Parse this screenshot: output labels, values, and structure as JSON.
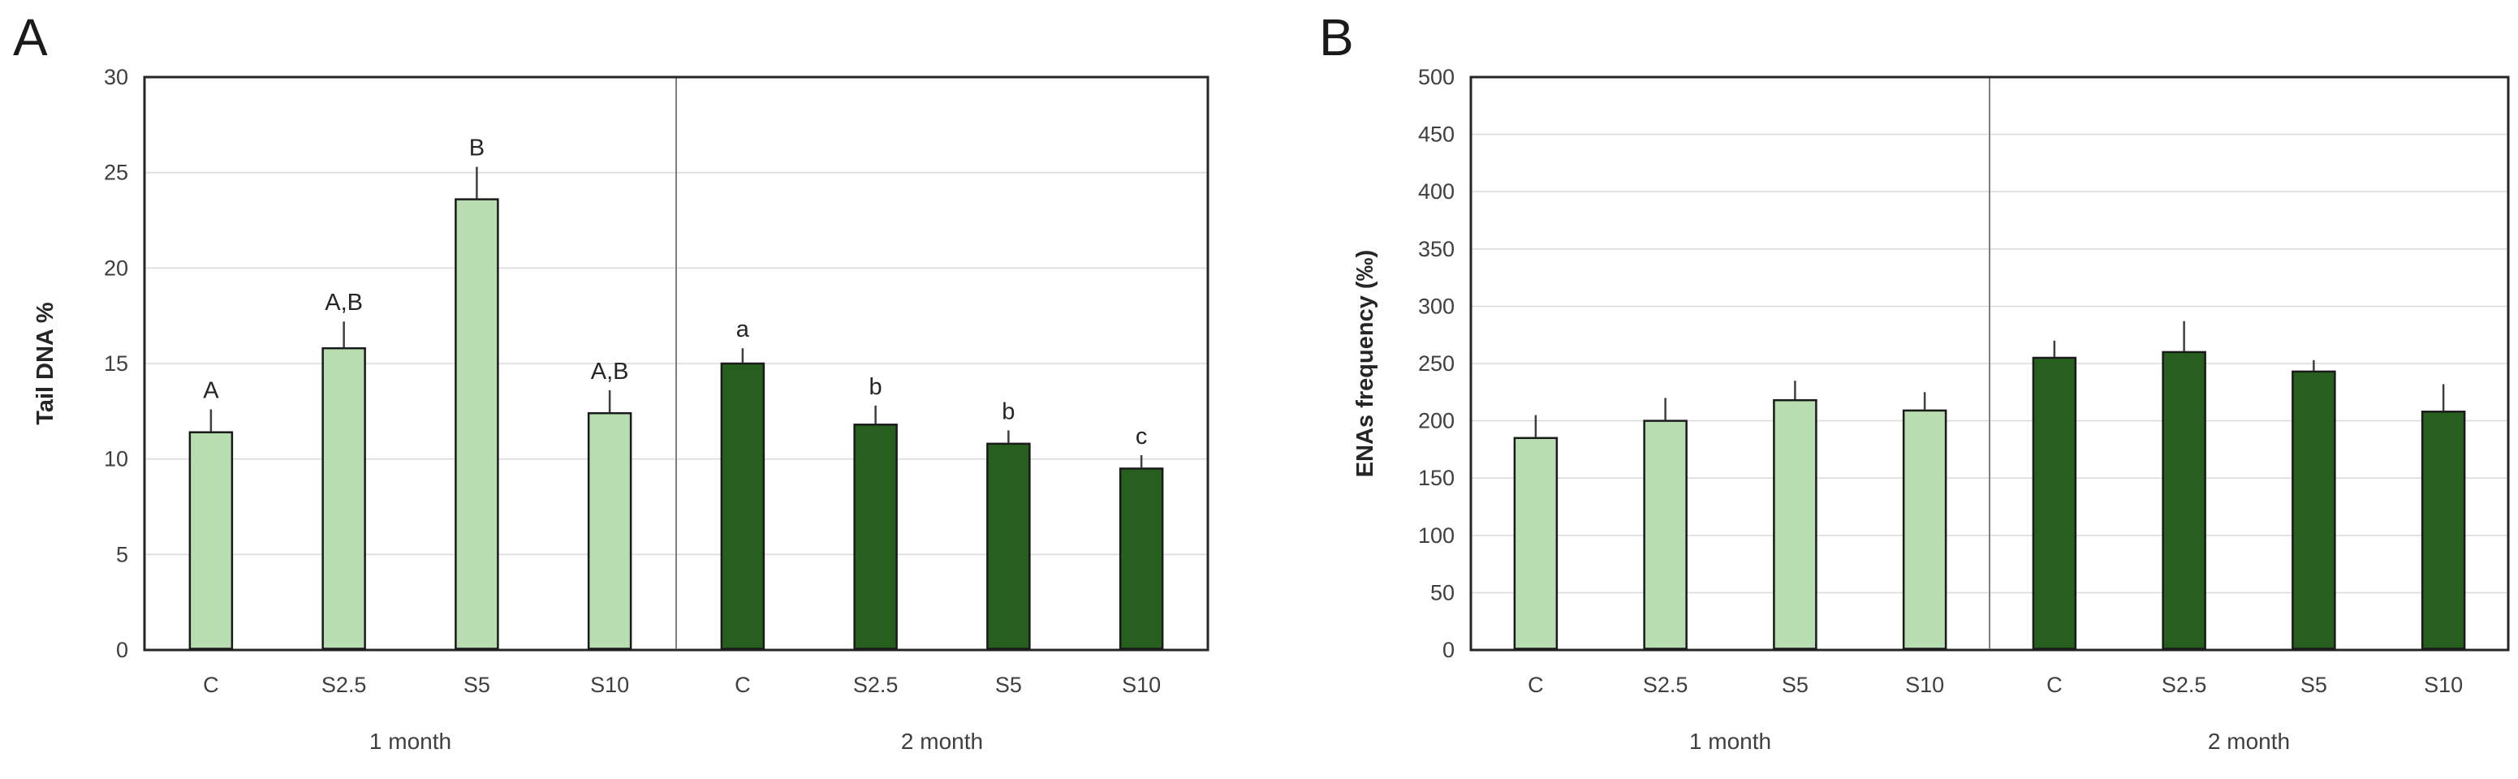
{
  "figure": {
    "background": "#ffffff",
    "panels": [
      "A",
      "B"
    ]
  },
  "colors": {
    "light_green": "#b8ddb0",
    "dark_green": "#27601e",
    "bar_stroke": "#1a1a1a",
    "axis_frame": "#262626",
    "gridline": "#dcdcdc",
    "divider": "#7f7f7f",
    "error_bar": "#3f3f3f",
    "text": "#3f3f3f",
    "letter_text": "#262626"
  },
  "chart_data": [
    {
      "panel_label": "A",
      "type": "bar",
      "title": "",
      "xlabel": "",
      "ylabel": "Tail DNA %",
      "ylim": [
        0,
        30
      ],
      "ytick_step": 5,
      "yticks": [
        0,
        5,
        10,
        15,
        20,
        25,
        30
      ],
      "grid": true,
      "legend_position": "none",
      "group_divider": true,
      "groups": [
        {
          "label": "1 month",
          "bar_color": "#b8ddb0",
          "categories": [
            "C",
            "S2.5",
            "S5",
            "S10"
          ],
          "values": [
            11.4,
            15.8,
            23.6,
            12.4
          ],
          "errors_plus": [
            1.2,
            1.4,
            1.7,
            1.2
          ],
          "letters": [
            "A",
            "A,B",
            "B",
            "A,B"
          ]
        },
        {
          "label": "2 month",
          "bar_color": "#27601e",
          "categories": [
            "C",
            "S2.5",
            "S5",
            "S10"
          ],
          "values": [
            15.0,
            11.8,
            10.8,
            9.5
          ],
          "errors_plus": [
            0.8,
            1.0,
            0.7,
            0.7
          ],
          "letters": [
            "a",
            "b",
            "b",
            "c"
          ]
        }
      ]
    },
    {
      "panel_label": "B",
      "type": "bar",
      "title": "",
      "xlabel": "",
      "ylabel": "ENAs frequency (‰)",
      "ylim": [
        0,
        500
      ],
      "ytick_step": 50,
      "yticks": [
        0,
        50,
        100,
        150,
        200,
        250,
        300,
        350,
        400,
        450,
        500
      ],
      "grid": true,
      "legend_position": "none",
      "group_divider": true,
      "groups": [
        {
          "label": "1 month",
          "bar_color": "#b8ddb0",
          "categories": [
            "C",
            "S2.5",
            "S5",
            "S10"
          ],
          "values": [
            185,
            200,
            218,
            209
          ],
          "errors_plus": [
            20,
            20,
            17,
            16
          ],
          "letters": [
            "",
            "",
            "",
            ""
          ]
        },
        {
          "label": "2 month",
          "bar_color": "#27601e",
          "categories": [
            "C",
            "S2.5",
            "S5",
            "S10"
          ],
          "values": [
            255,
            260,
            243,
            208
          ],
          "errors_plus": [
            15,
            27,
            10,
            24
          ],
          "letters": [
            "",
            "",
            "",
            ""
          ]
        }
      ]
    }
  ]
}
